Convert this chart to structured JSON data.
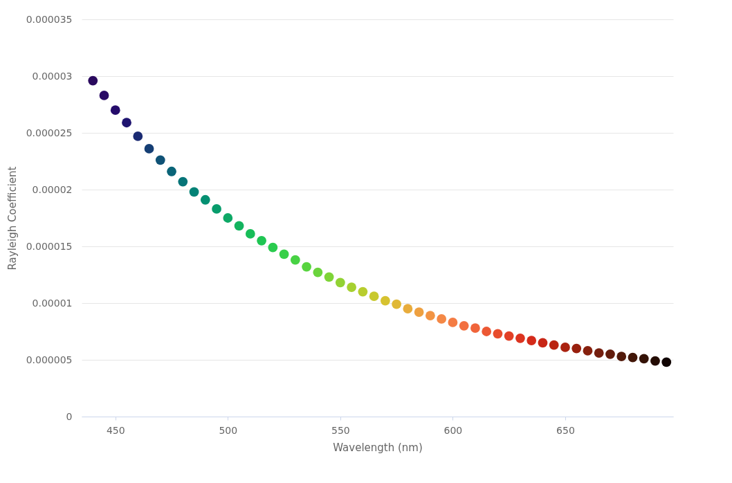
{
  "chart_data": {
    "type": "scatter",
    "xlabel": "Wavelength (nm)",
    "ylabel": "Rayleigh Coefficient",
    "x": [
      440,
      445,
      450,
      455,
      460,
      465,
      470,
      475,
      480,
      485,
      490,
      495,
      500,
      505,
      510,
      515,
      520,
      525,
      530,
      535,
      540,
      545,
      550,
      555,
      560,
      565,
      570,
      575,
      580,
      585,
      590,
      595,
      600,
      605,
      610,
      615,
      620,
      625,
      630,
      635,
      640,
      645,
      650,
      655,
      660,
      665,
      670,
      675,
      680,
      685,
      690,
      695
    ],
    "series": [
      {
        "values": [
          2.96e-05,
          2.83e-05,
          2.7e-05,
          2.59e-05,
          2.47e-05,
          2.36e-05,
          2.26e-05,
          2.16e-05,
          2.07e-05,
          1.98e-05,
          1.91e-05,
          1.83e-05,
          1.75e-05,
          1.68e-05,
          1.61e-05,
          1.55e-05,
          1.49e-05,
          1.43e-05,
          1.38e-05,
          1.32e-05,
          1.27e-05,
          1.23e-05,
          1.18e-05,
          1.14e-05,
          1.1e-05,
          1.06e-05,
          1.02e-05,
          9.9e-06,
          9.5e-06,
          9.2e-06,
          8.9e-06,
          8.6e-06,
          8.3e-06,
          8e-06,
          7.8e-06,
          7.5e-06,
          7.3e-06,
          7.1e-06,
          6.9e-06,
          6.7e-06,
          6.5e-06,
          6.3e-06,
          6.1e-06,
          6e-06,
          5.8e-06,
          5.6e-06,
          5.5e-06,
          5.3e-06,
          5.2e-06,
          5.1e-06,
          4.9e-06,
          4.8e-06
        ],
        "colors": [
          "#2a0a5e",
          "#2a0a66",
          "#250c6b",
          "#1f1470",
          "#1a2a72",
          "#153e74",
          "#0f5276",
          "#0a6478",
          "#067478",
          "#038276",
          "#049072",
          "#089c6c",
          "#0ea866",
          "#13b35f",
          "#18bd58",
          "#1fc553",
          "#2acb4e",
          "#38cf49",
          "#48d244",
          "#58d440",
          "#6ad43c",
          "#7ed438",
          "#92d234",
          "#a6d030",
          "#b8cd2e",
          "#c8c92e",
          "#d6c230",
          "#e0b836",
          "#e8ac3c",
          "#eea040",
          "#f29444",
          "#f48846",
          "#f47c44",
          "#f27040",
          "#f0643a",
          "#ec5834",
          "#e84c2c",
          "#e24026",
          "#dc3420",
          "#d42a1a",
          "#c82616",
          "#ba2412",
          "#aa2210",
          "#98200e",
          "#86200e",
          "#741e0e",
          "#621c0c",
          "#521a0a",
          "#421608",
          "#341206",
          "#240c04",
          "#100402"
        ]
      }
    ],
    "xlim": [
      435,
      698
    ],
    "xticks": [
      450,
      500,
      550,
      600,
      650
    ],
    "ylim": [
      0,
      3.5e-05
    ],
    "yticks": [
      0,
      {
        "value": 5e-06,
        "label": "0.000005"
      },
      {
        "value": 1e-05,
        "label": "0.00001"
      },
      {
        "value": 1.5e-05,
        "label": "0.000015"
      },
      {
        "value": 2e-05,
        "label": "0.00002"
      },
      {
        "value": 2.5e-05,
        "label": "0.000025"
      },
      {
        "value": 3e-05,
        "label": "0.00003"
      },
      {
        "value": 3.5e-05,
        "label": "0.000035"
      }
    ],
    "grid": "y",
    "legend": false,
    "marker": "circle"
  }
}
